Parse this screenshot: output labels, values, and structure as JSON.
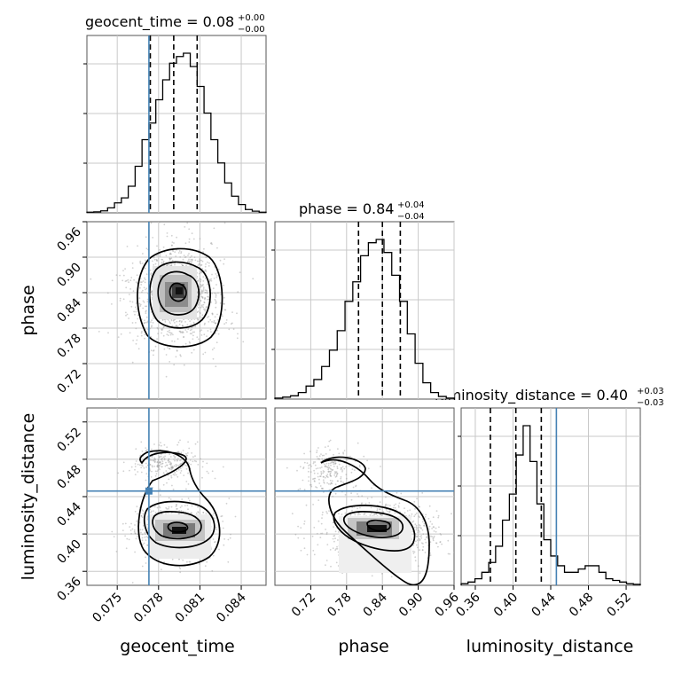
{
  "chart_data": {
    "type": "corner",
    "parameters": [
      "geocent_time",
      "phase",
      "luminosity_distance"
    ],
    "axis_labels": [
      "geocent_time",
      "phase",
      "luminosity_distance"
    ],
    "titles": [
      {
        "name": "geocent_time",
        "value": "0.08",
        "plus": "+0.00",
        "minus": "−0.00"
      },
      {
        "name": "phase",
        "value": "0.84",
        "plus": "+0.04",
        "minus": "−0.04"
      },
      {
        "name": "luminosity_distance",
        "value": "0.40",
        "plus": "+0.03",
        "minus": "−0.03"
      }
    ],
    "ranges": [
      [
        0.0728,
        0.0858
      ],
      [
        0.66,
        0.96
      ],
      [
        0.345,
        0.535
      ]
    ],
    "ticks": [
      {
        "values": [
          0.075,
          0.078,
          0.081,
          0.084
        ],
        "labels": [
          "0.075",
          "0.078",
          "0.081",
          "0.084"
        ]
      },
      {
        "values": [
          0.72,
          0.78,
          0.84,
          0.9,
          0.96
        ],
        "labels": [
          "0.72",
          "0.78",
          "0.84",
          "0.90",
          "0.96"
        ]
      },
      {
        "values": [
          0.36,
          0.4,
          0.44,
          0.48,
          0.52
        ],
        "labels": [
          "0.36",
          "0.40",
          "0.44",
          "0.48",
          "0.52"
        ]
      }
    ],
    "quantiles": [
      [
        0.0774,
        0.0791,
        0.0808
      ],
      [
        0.8,
        0.84,
        0.87
      ],
      [
        0.376,
        0.403,
        0.43
      ]
    ],
    "truths": [
      0.0773,
      null,
      0.446
    ],
    "histograms": [
      {
        "edges_range": [
          0.0728,
          0.0858
        ],
        "counts": [
          0.2,
          0.3,
          0.6,
          1.5,
          3.0,
          4.5,
          8.0,
          14,
          22,
          27,
          34,
          40,
          45,
          47,
          48,
          44,
          38,
          30,
          22,
          15,
          9,
          5,
          2.5,
          1.0,
          0.5,
          0.2
        ]
      },
      {
        "edges_range": [
          0.66,
          0.96
        ],
        "counts": [
          0.3,
          0.6,
          1,
          2,
          4,
          6,
          10,
          15,
          21,
          30,
          36,
          44,
          48,
          49,
          45,
          38,
          30,
          20,
          11,
          5,
          2,
          0.8,
          0.3
        ]
      },
      {
        "edges_range": [
          0.345,
          0.535
        ],
        "counts": [
          0.5,
          1,
          2,
          4,
          7,
          12,
          20,
          28,
          40,
          49,
          38,
          25,
          14,
          9,
          6,
          4,
          4,
          5,
          6,
          6,
          4,
          2,
          1.5,
          1,
          0.5,
          0.3
        ]
      }
    ],
    "grid": true,
    "color": "#000000",
    "truth_color": "#4682b4"
  }
}
